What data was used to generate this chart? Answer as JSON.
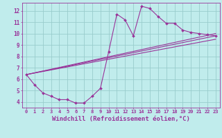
{
  "xlabel": "Windchill (Refroidissement éolien,°C)",
  "bg_color": "#c0ecec",
  "line_color": "#993399",
  "grid_color": "#99cccc",
  "axis_color": "#993399",
  "xlim": [
    -0.5,
    23.5
  ],
  "ylim": [
    3.5,
    12.7
  ],
  "xticks": [
    0,
    1,
    2,
    3,
    4,
    5,
    6,
    7,
    8,
    9,
    10,
    11,
    12,
    13,
    14,
    15,
    16,
    17,
    18,
    19,
    20,
    21,
    22,
    23
  ],
  "yticks": [
    4,
    5,
    6,
    7,
    8,
    9,
    10,
    11,
    12
  ],
  "line1_x": [
    0,
    1,
    2,
    3,
    4,
    5,
    6,
    7,
    8,
    9,
    10,
    11,
    12,
    13,
    14,
    15,
    16,
    17,
    18,
    19,
    20,
    21,
    22,
    23
  ],
  "line1_y": [
    6.4,
    5.5,
    4.8,
    4.5,
    4.2,
    4.2,
    3.9,
    3.9,
    4.5,
    5.2,
    8.4,
    11.7,
    11.2,
    9.8,
    12.4,
    12.2,
    11.5,
    10.9,
    10.9,
    10.3,
    10.1,
    10.0,
    9.9,
    9.8
  ],
  "line2_x": [
    0,
    23
  ],
  "line2_y": [
    6.4,
    9.8
  ],
  "line3_x": [
    0,
    23
  ],
  "line3_y": [
    6.4,
    9.5
  ],
  "line4_x": [
    0,
    23
  ],
  "line4_y": [
    6.4,
    10.0
  ],
  "tick_fontsize": 5.0,
  "label_fontsize": 6.5
}
